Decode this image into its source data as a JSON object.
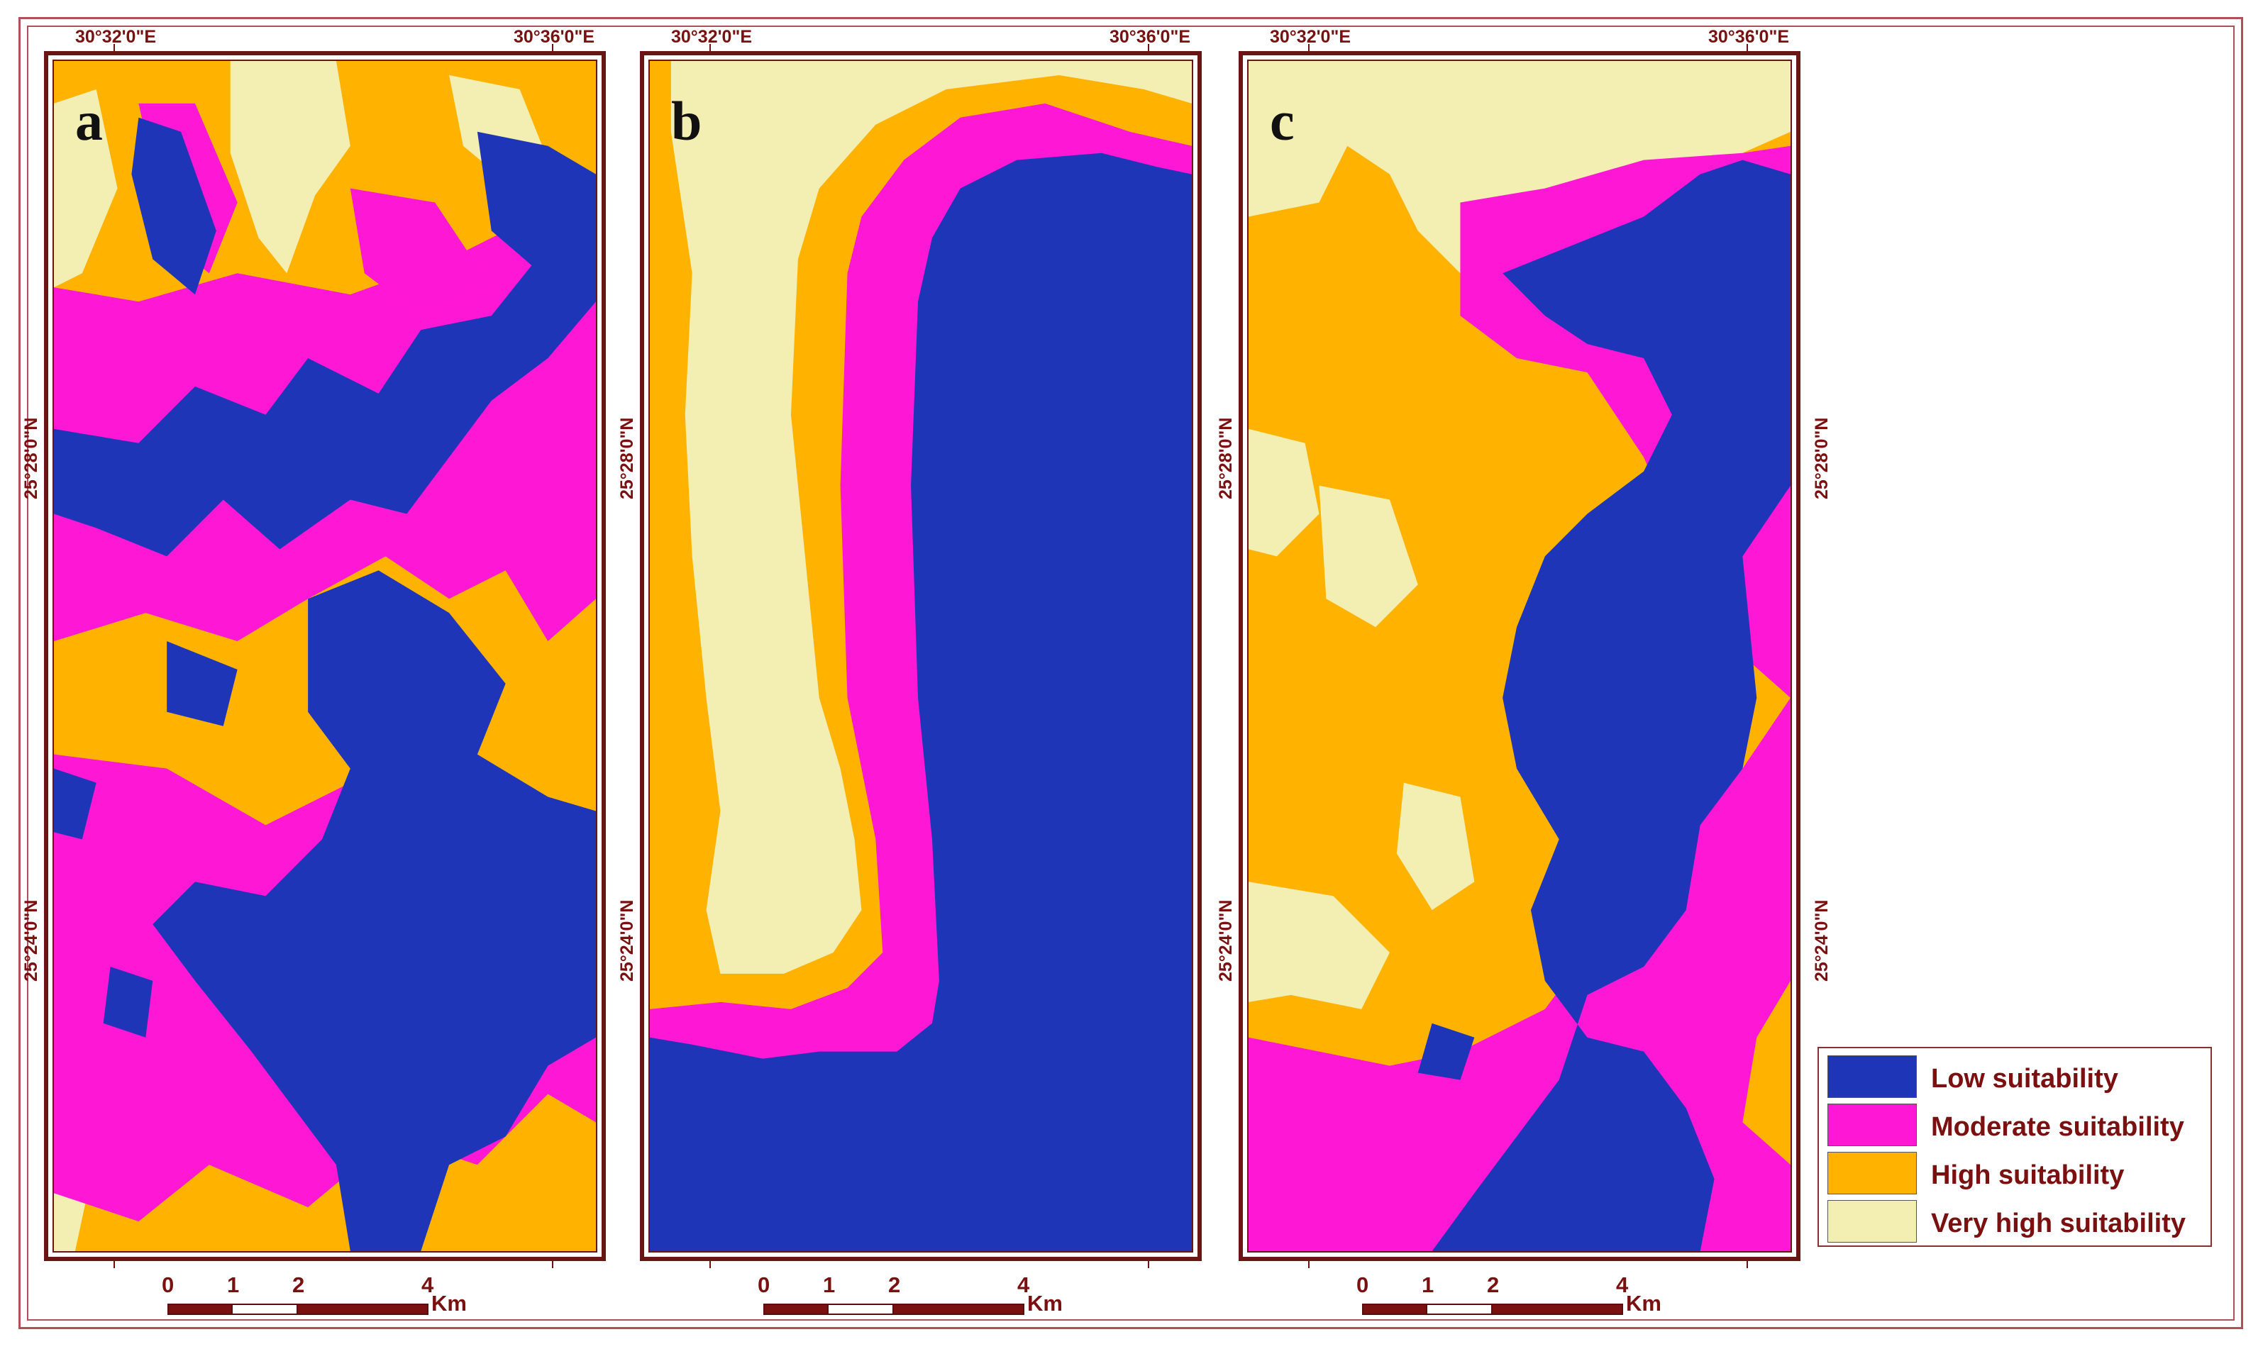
{
  "panels": [
    {
      "letter": "a",
      "lon_left": "30°32'0\"E",
      "lon_right": "30°36'0\"E",
      "lat_upper": "25°28'0\"N",
      "lat_lower": "25°24'0\"N"
    },
    {
      "letter": "b",
      "lon_left": "30°32'0\"E",
      "lon_right": "30°36'0\"E",
      "lat_upper": "25°28'0\"N",
      "lat_lower": "25°24'0\"N"
    },
    {
      "letter": "c",
      "lon_left": "30°32'0\"E",
      "lon_right": "30°36'0\"E",
      "lat_upper": "25°28'0\"N",
      "lat_lower": "25°24'0\"N"
    }
  ],
  "legend": [
    {
      "label": "Low suitability",
      "color": "#1e35b8"
    },
    {
      "label": "Moderate suitability",
      "color": "#ff17d6"
    },
    {
      "label": "High suitability",
      "color": "#ffb300"
    },
    {
      "label": "Very high suitability",
      "color": "#f3eeb2"
    }
  ],
  "scalebar": {
    "ticks": [
      "0",
      "1",
      "2",
      "4"
    ],
    "unit": "Km"
  }
}
